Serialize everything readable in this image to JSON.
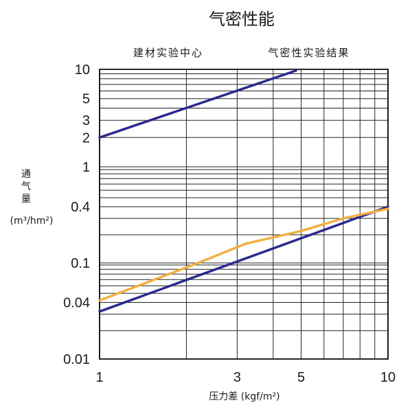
{
  "chart_data": {
    "type": "line",
    "title": "气密性能",
    "subtitle_left": "建材实验中心",
    "subtitle_right": "气密性实验结果",
    "ylabel_chars": [
      "通",
      "气",
      "量"
    ],
    "ylabel_unit": "(m³/hm²)",
    "xlabel": "压力差 (kgf/m²)",
    "x_scale": "log",
    "xlim": [
      1,
      10
    ],
    "x_ticks": [
      {
        "value": 1,
        "label": "1"
      },
      {
        "value": 3,
        "label": "3"
      },
      {
        "value": 5,
        "label": "5"
      },
      {
        "value": 10,
        "label": "10"
      }
    ],
    "y_ticks": [
      {
        "label": "10"
      },
      {
        "label": "5"
      },
      {
        "label": "3"
      },
      {
        "label": "2"
      },
      {
        "label": "1"
      },
      {
        "label": "0.4"
      },
      {
        "label": "0.1"
      },
      {
        "label": "0.04"
      },
      {
        "label": "0.01"
      }
    ],
    "series": [
      {
        "color": "#2b2a8e",
        "points": [
          [
            1,
            2
          ],
          [
            4.8,
            9.7
          ]
        ]
      },
      {
        "color": "#2b2a8e",
        "points": [
          [
            1,
            0.032
          ],
          [
            10,
            0.4
          ]
        ]
      },
      {
        "color": "#f0b040",
        "points": [
          [
            1,
            0.042
          ],
          [
            2.2,
            0.1
          ],
          [
            3.2,
            0.16
          ],
          [
            5,
            0.22
          ],
          [
            7,
            0.3
          ],
          [
            10,
            0.38
          ]
        ]
      }
    ],
    "grid": true,
    "legend": "none"
  }
}
